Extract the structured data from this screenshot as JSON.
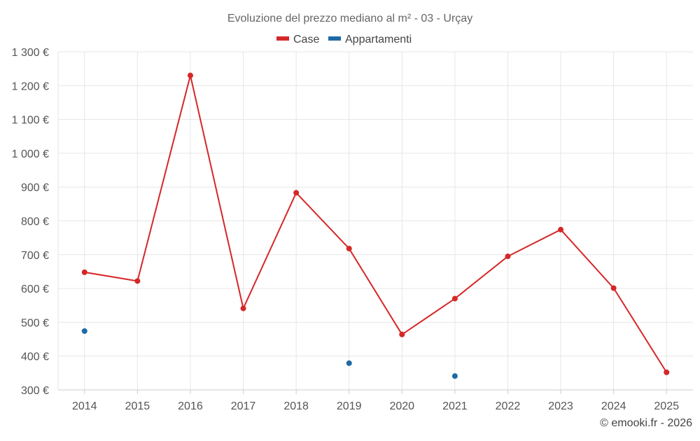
{
  "chart_data": {
    "type": "line",
    "title": "Evoluzione del prezzo mediano al m² - 03 - Urçay",
    "categories": [
      "2014",
      "2015",
      "2016",
      "2017",
      "2018",
      "2019",
      "2020",
      "2021",
      "2022",
      "2023",
      "2024",
      "2025"
    ],
    "series": [
      {
        "name": "Case",
        "color": "#d62728",
        "values": [
          648,
          622,
          1230,
          541,
          883,
          718,
          464,
          570,
          695,
          774,
          601,
          352
        ],
        "connected": true
      },
      {
        "name": "Appartamenti",
        "color": "#1f6aa5",
        "values": [
          474,
          null,
          null,
          null,
          null,
          379,
          null,
          341,
          null,
          null,
          null,
          null
        ],
        "connected": false
      }
    ],
    "ylim": [
      300,
      1300
    ],
    "yticks": [
      300,
      400,
      500,
      600,
      700,
      800,
      900,
      1000,
      1100,
      1200,
      1300
    ],
    "ytick_labels": [
      "300 €",
      "400 €",
      "500 €",
      "600 €",
      "700 €",
      "800 €",
      "900 €",
      "1 000 €",
      "1 100 €",
      "1 200 €",
      "1 300 €"
    ],
    "grid": true,
    "legend_position": "top-center"
  },
  "credit": "© emooki.fr - 2026"
}
